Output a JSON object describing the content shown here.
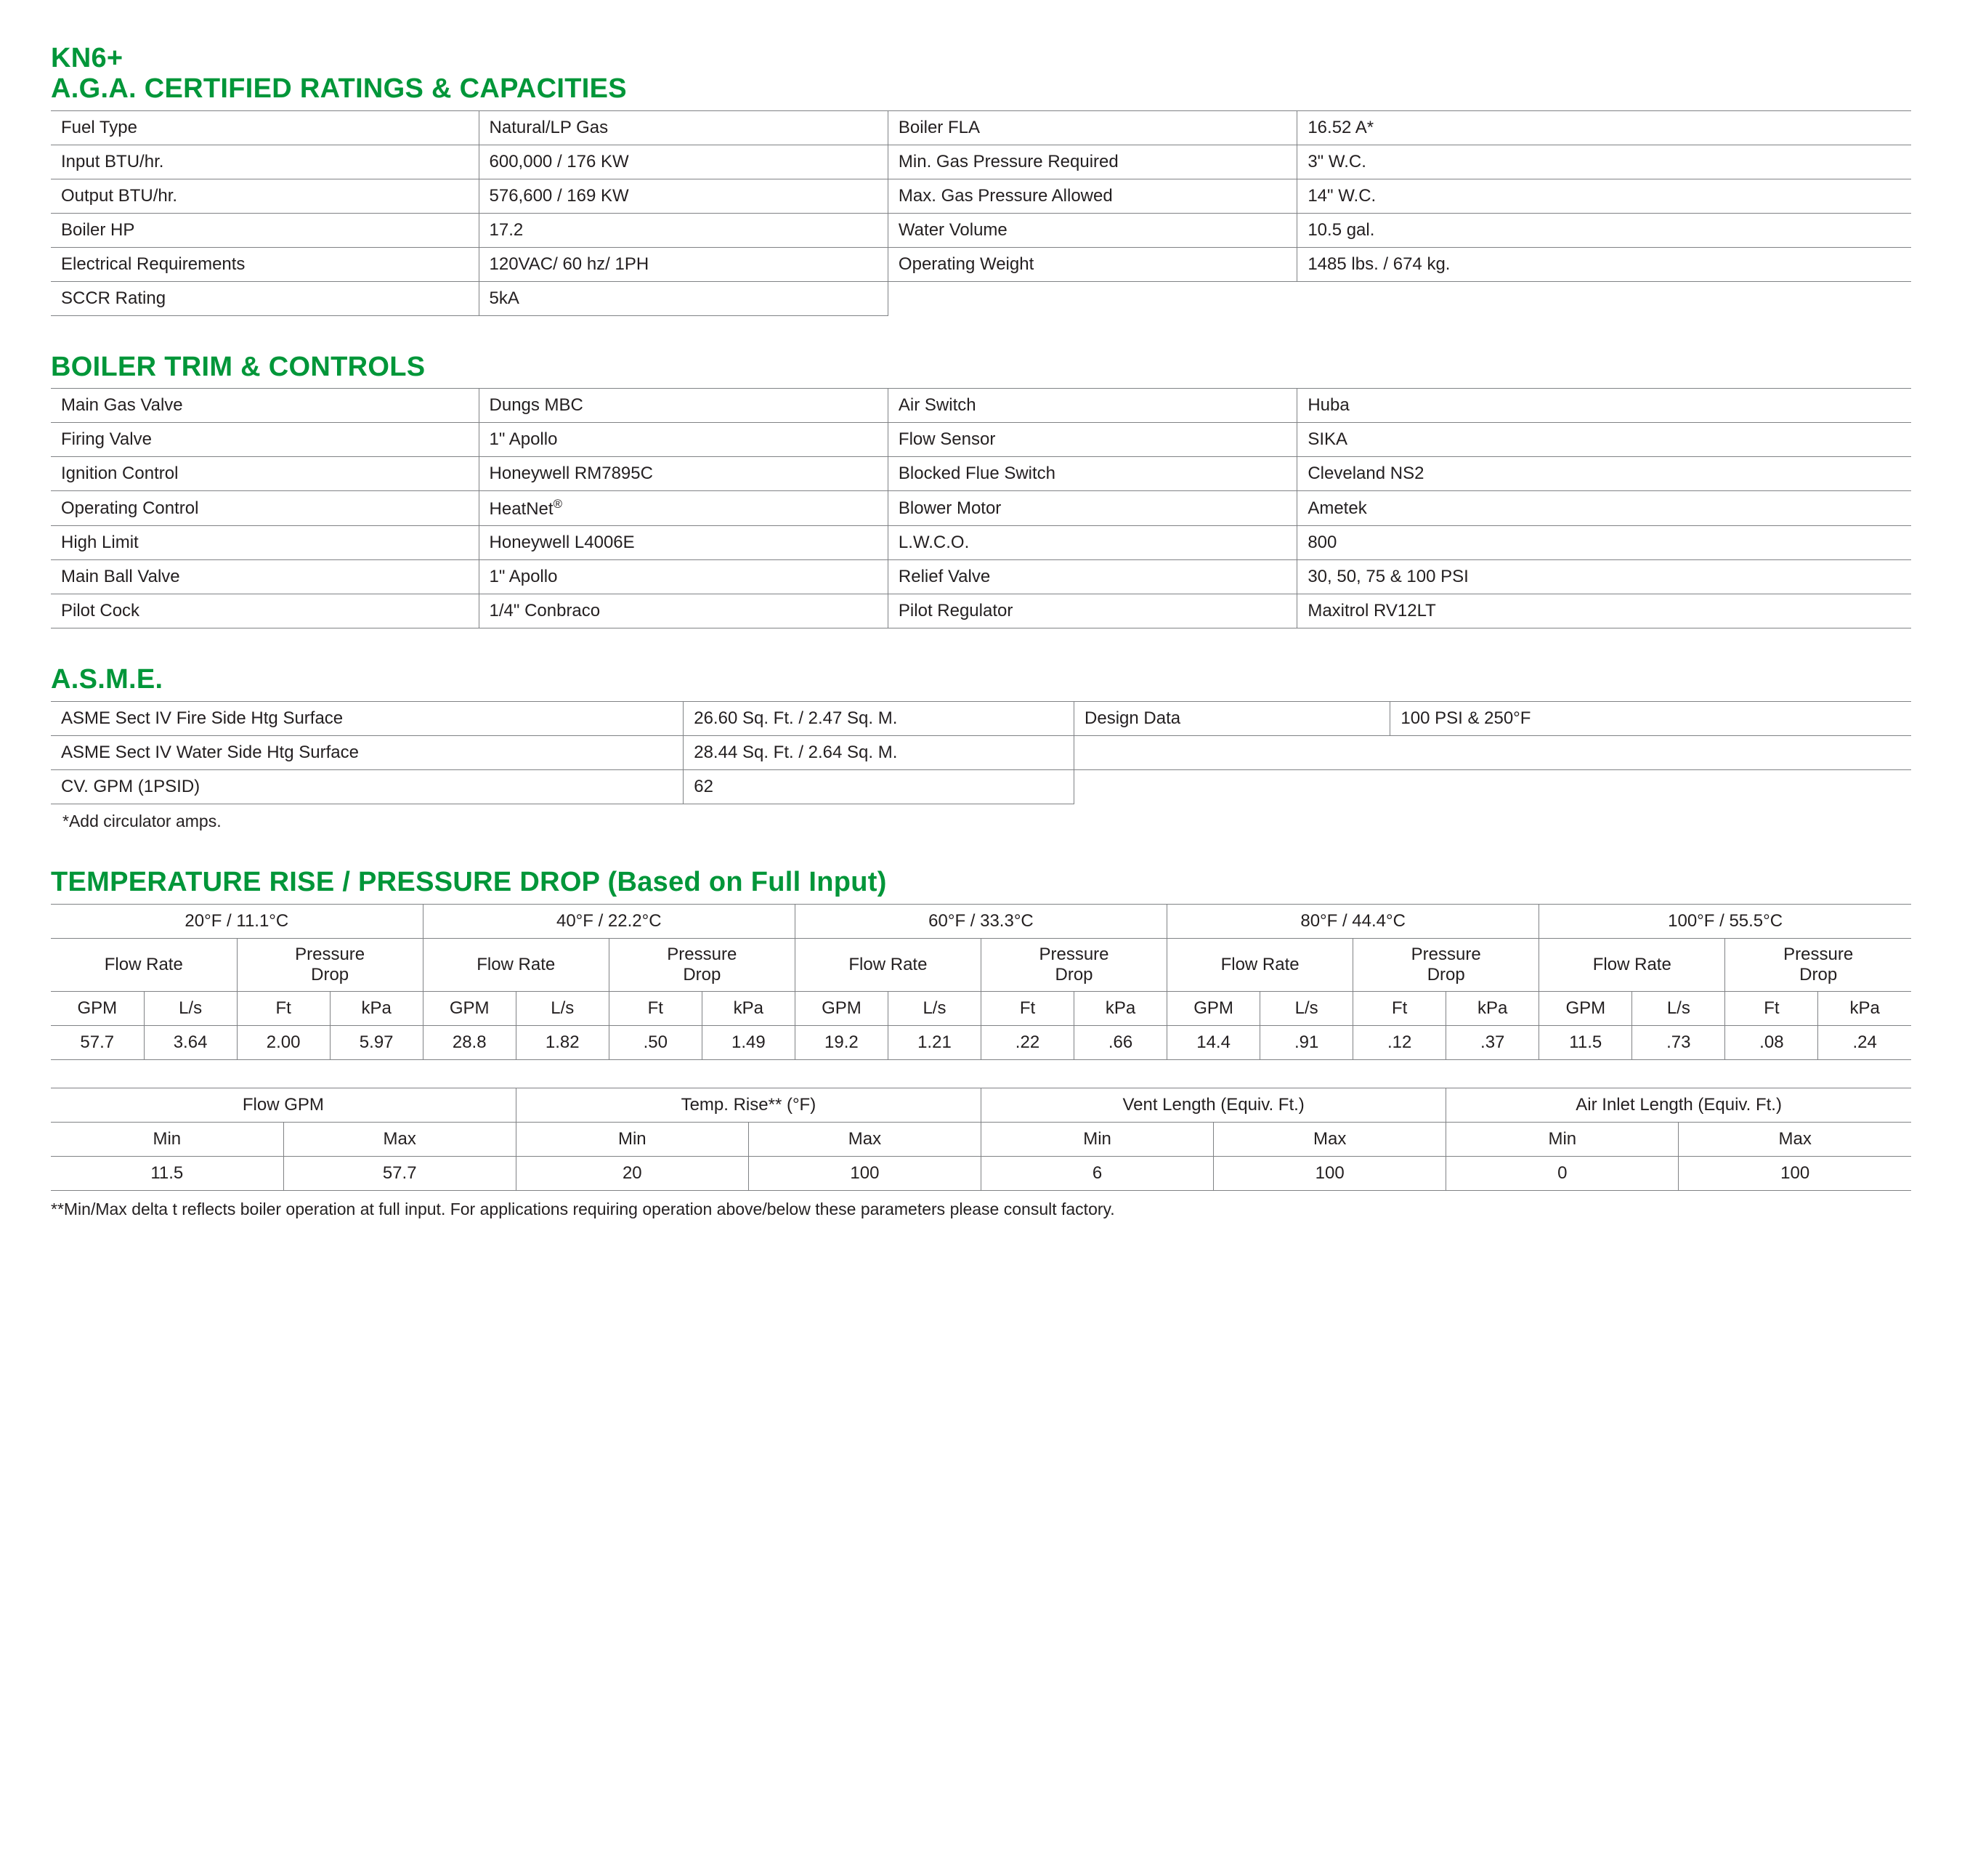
{
  "colors": {
    "accent": "#009639",
    "text": "#231f20",
    "border": "#808285",
    "background": "#ffffff"
  },
  "typography": {
    "body_family": "Myriad Pro / Segoe UI / Arial",
    "heading_family": "Arial Black / Impact",
    "body_size_pt": 18,
    "heading_size_pt": 28
  },
  "model": "KN6+",
  "sections": {
    "ratings": {
      "title": "A.G.A. CERTIFIED RATINGS & CAPACITIES",
      "rows": [
        [
          "Fuel Type",
          "Natural/LP Gas",
          "Boiler FLA",
          "16.52 A*"
        ],
        [
          "Input BTU/hr.",
          "600,000 / 176 KW",
          "Min. Gas Pressure Required",
          "3\" W.C."
        ],
        [
          "Output BTU/hr.",
          "576,600 / 169 KW",
          "Max. Gas Pressure Allowed",
          "14\" W.C."
        ],
        [
          "Boiler HP",
          "17.2",
          "Water Volume",
          "10.5 gal."
        ],
        [
          "Electrical Requirements",
          "120VAC/ 60 hz/ 1PH",
          "Operating Weight",
          "1485 lbs. / 674 kg."
        ],
        [
          "SCCR Rating",
          "5kA",
          "",
          ""
        ]
      ]
    },
    "trim": {
      "title": "BOILER TRIM & CONTROLS",
      "rows": [
        [
          "Main Gas Valve",
          "Dungs MBC",
          "Air Switch",
          "Huba"
        ],
        [
          "Firing Valve",
          "1\" Apollo",
          "Flow Sensor",
          "SIKA"
        ],
        [
          "Ignition Control",
          "Honeywell RM7895C",
          "Blocked Flue Switch",
          "Cleveland NS2"
        ],
        [
          "Operating Control",
          "HeatNet®",
          "Blower Motor",
          "Ametek"
        ],
        [
          "High Limit",
          "Honeywell L4006E",
          "L.W.C.O.",
          "800"
        ],
        [
          "Main Ball Valve",
          "1\" Apollo",
          "Relief Valve",
          "30, 50, 75 & 100 PSI"
        ],
        [
          "Pilot Cock",
          "1/4\" Conbraco",
          "Pilot Regulator",
          "Maxitrol RV12LT"
        ]
      ]
    },
    "asme": {
      "title": "A.S.M.E.",
      "rows": [
        [
          "ASME Sect IV Fire Side Htg Surface",
          "26.60 Sq. Ft. / 2.47 Sq. M.",
          "Design Data",
          "100 PSI & 250°F"
        ],
        [
          "ASME Sect IV Water Side Htg Surface",
          "28.44 Sq. Ft. / 2.64 Sq. M.",
          "",
          ""
        ],
        [
          "CV. GPM (1PSID)",
          "62",
          "",
          ""
        ]
      ],
      "footnote": "*Add circulator amps."
    },
    "temprise": {
      "title": "TEMPERATURE RISE / PRESSURE DROP (Based on Full Input)",
      "groups": [
        "20°F / 11.1°C",
        "40°F / 22.2°C",
        "60°F / 33.3°C",
        "80°F / 44.4°C",
        "100°F / 55.5°C"
      ],
      "sub_left": "Flow Rate",
      "sub_right": "Pressure Drop",
      "units": [
        "GPM",
        "L/s",
        "Ft",
        "kPa"
      ],
      "data": [
        [
          "57.7",
          "3.64",
          "2.00",
          "5.97"
        ],
        [
          "28.8",
          "1.82",
          ".50",
          "1.49"
        ],
        [
          "19.2",
          "1.21",
          ".22",
          ".66"
        ],
        [
          "14.4",
          ".91",
          ".12",
          ".37"
        ],
        [
          "11.5",
          ".73",
          ".08",
          ".24"
        ]
      ]
    },
    "ranges": {
      "headers": [
        "Flow GPM",
        "Temp. Rise** (°F)",
        "Vent Length (Equiv. Ft.)",
        "Air Inlet Length (Equiv. Ft.)"
      ],
      "sub": [
        "Min",
        "Max"
      ],
      "rows": [
        [
          "11.5",
          "57.7",
          "20",
          "100",
          "6",
          "100",
          "0",
          "100"
        ]
      ],
      "footnote": "**Min/Max delta t reflects boiler operation at full input. For applications requiring operation above/below these parameters please consult factory."
    }
  }
}
